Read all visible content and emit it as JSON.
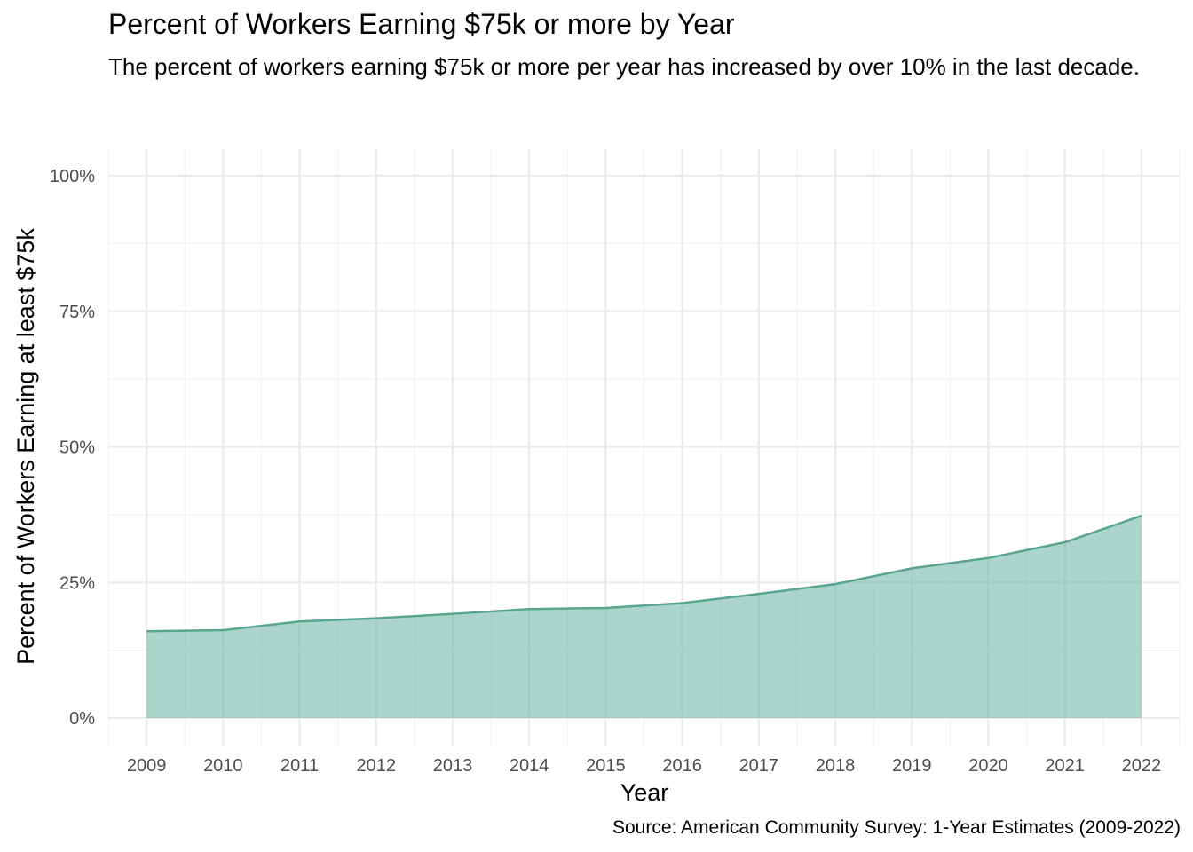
{
  "chart_data": {
    "type": "area",
    "title": "Percent of Workers Earning $75k or more by Year",
    "subtitle": "The percent of workers earning $75k or more per year has increased by over 10% in the last decade.",
    "caption": "Source: American Community Survey: 1-Year Estimates (2009-2022)",
    "xlabel": "Year",
    "ylabel": "Percent of Workers Earning at least $75k",
    "x": [
      2009,
      2010,
      2011,
      2012,
      2013,
      2014,
      2015,
      2016,
      2017,
      2018,
      2019,
      2020,
      2021,
      2022
    ],
    "x_tick_labels": [
      "2009",
      "2010",
      "2011",
      "2012",
      "2013",
      "2014",
      "2015",
      "2016",
      "2017",
      "2018",
      "2019",
      "2020",
      "2021",
      "2022"
    ],
    "values": [
      16.0,
      16.2,
      17.8,
      18.4,
      19.2,
      20.1,
      20.3,
      21.2,
      22.9,
      24.7,
      27.6,
      29.5,
      32.4,
      37.3
    ],
    "ylim": [
      0,
      100
    ],
    "y_ticks": [
      0,
      25,
      50,
      75,
      100
    ],
    "y_tick_labels": [
      "0%",
      "25%",
      "50%",
      "75%",
      "100%"
    ],
    "xlim": [
      2008.5,
      2022.5
    ],
    "grid": true,
    "legend": "none",
    "colors": {
      "area_fill": "#66b2a1",
      "area_opacity": 0.55,
      "line": "#5aa58f",
      "grid_major": "#ebebeb",
      "grid_minor": "#f2f2f2"
    }
  }
}
